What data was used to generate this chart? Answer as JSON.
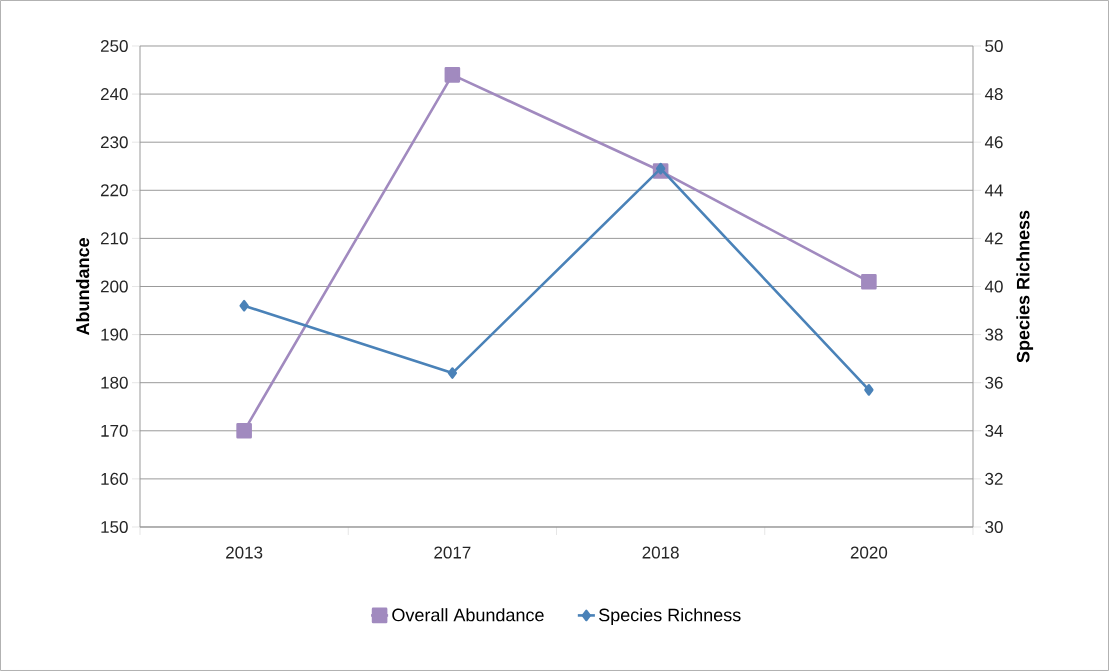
{
  "chart_data": {
    "type": "line",
    "categories": [
      "2013",
      "2017",
      "2018",
      "2020"
    ],
    "ylabel": "Abundance",
    "y2label": "Species Richness",
    "ylim": [
      150,
      250
    ],
    "yticks": [
      150,
      160,
      170,
      180,
      190,
      200,
      210,
      220,
      230,
      240,
      250
    ],
    "y2lim": [
      30,
      50
    ],
    "y2ticks": [
      30,
      32,
      34,
      36,
      38,
      40,
      42,
      44,
      46,
      48,
      50
    ],
    "grid": "y",
    "legend": "bottom",
    "series": [
      {
        "name": "Overall Abundance",
        "color": "#a18abf",
        "marker": "square",
        "values": [
          170,
          244,
          224,
          201
        ]
      },
      {
        "name": "Species Richness",
        "color": "#4a82b8",
        "marker": "diamond",
        "axis": "y2",
        "values": [
          39.2,
          36.4,
          44.9,
          35.7
        ]
      }
    ]
  }
}
